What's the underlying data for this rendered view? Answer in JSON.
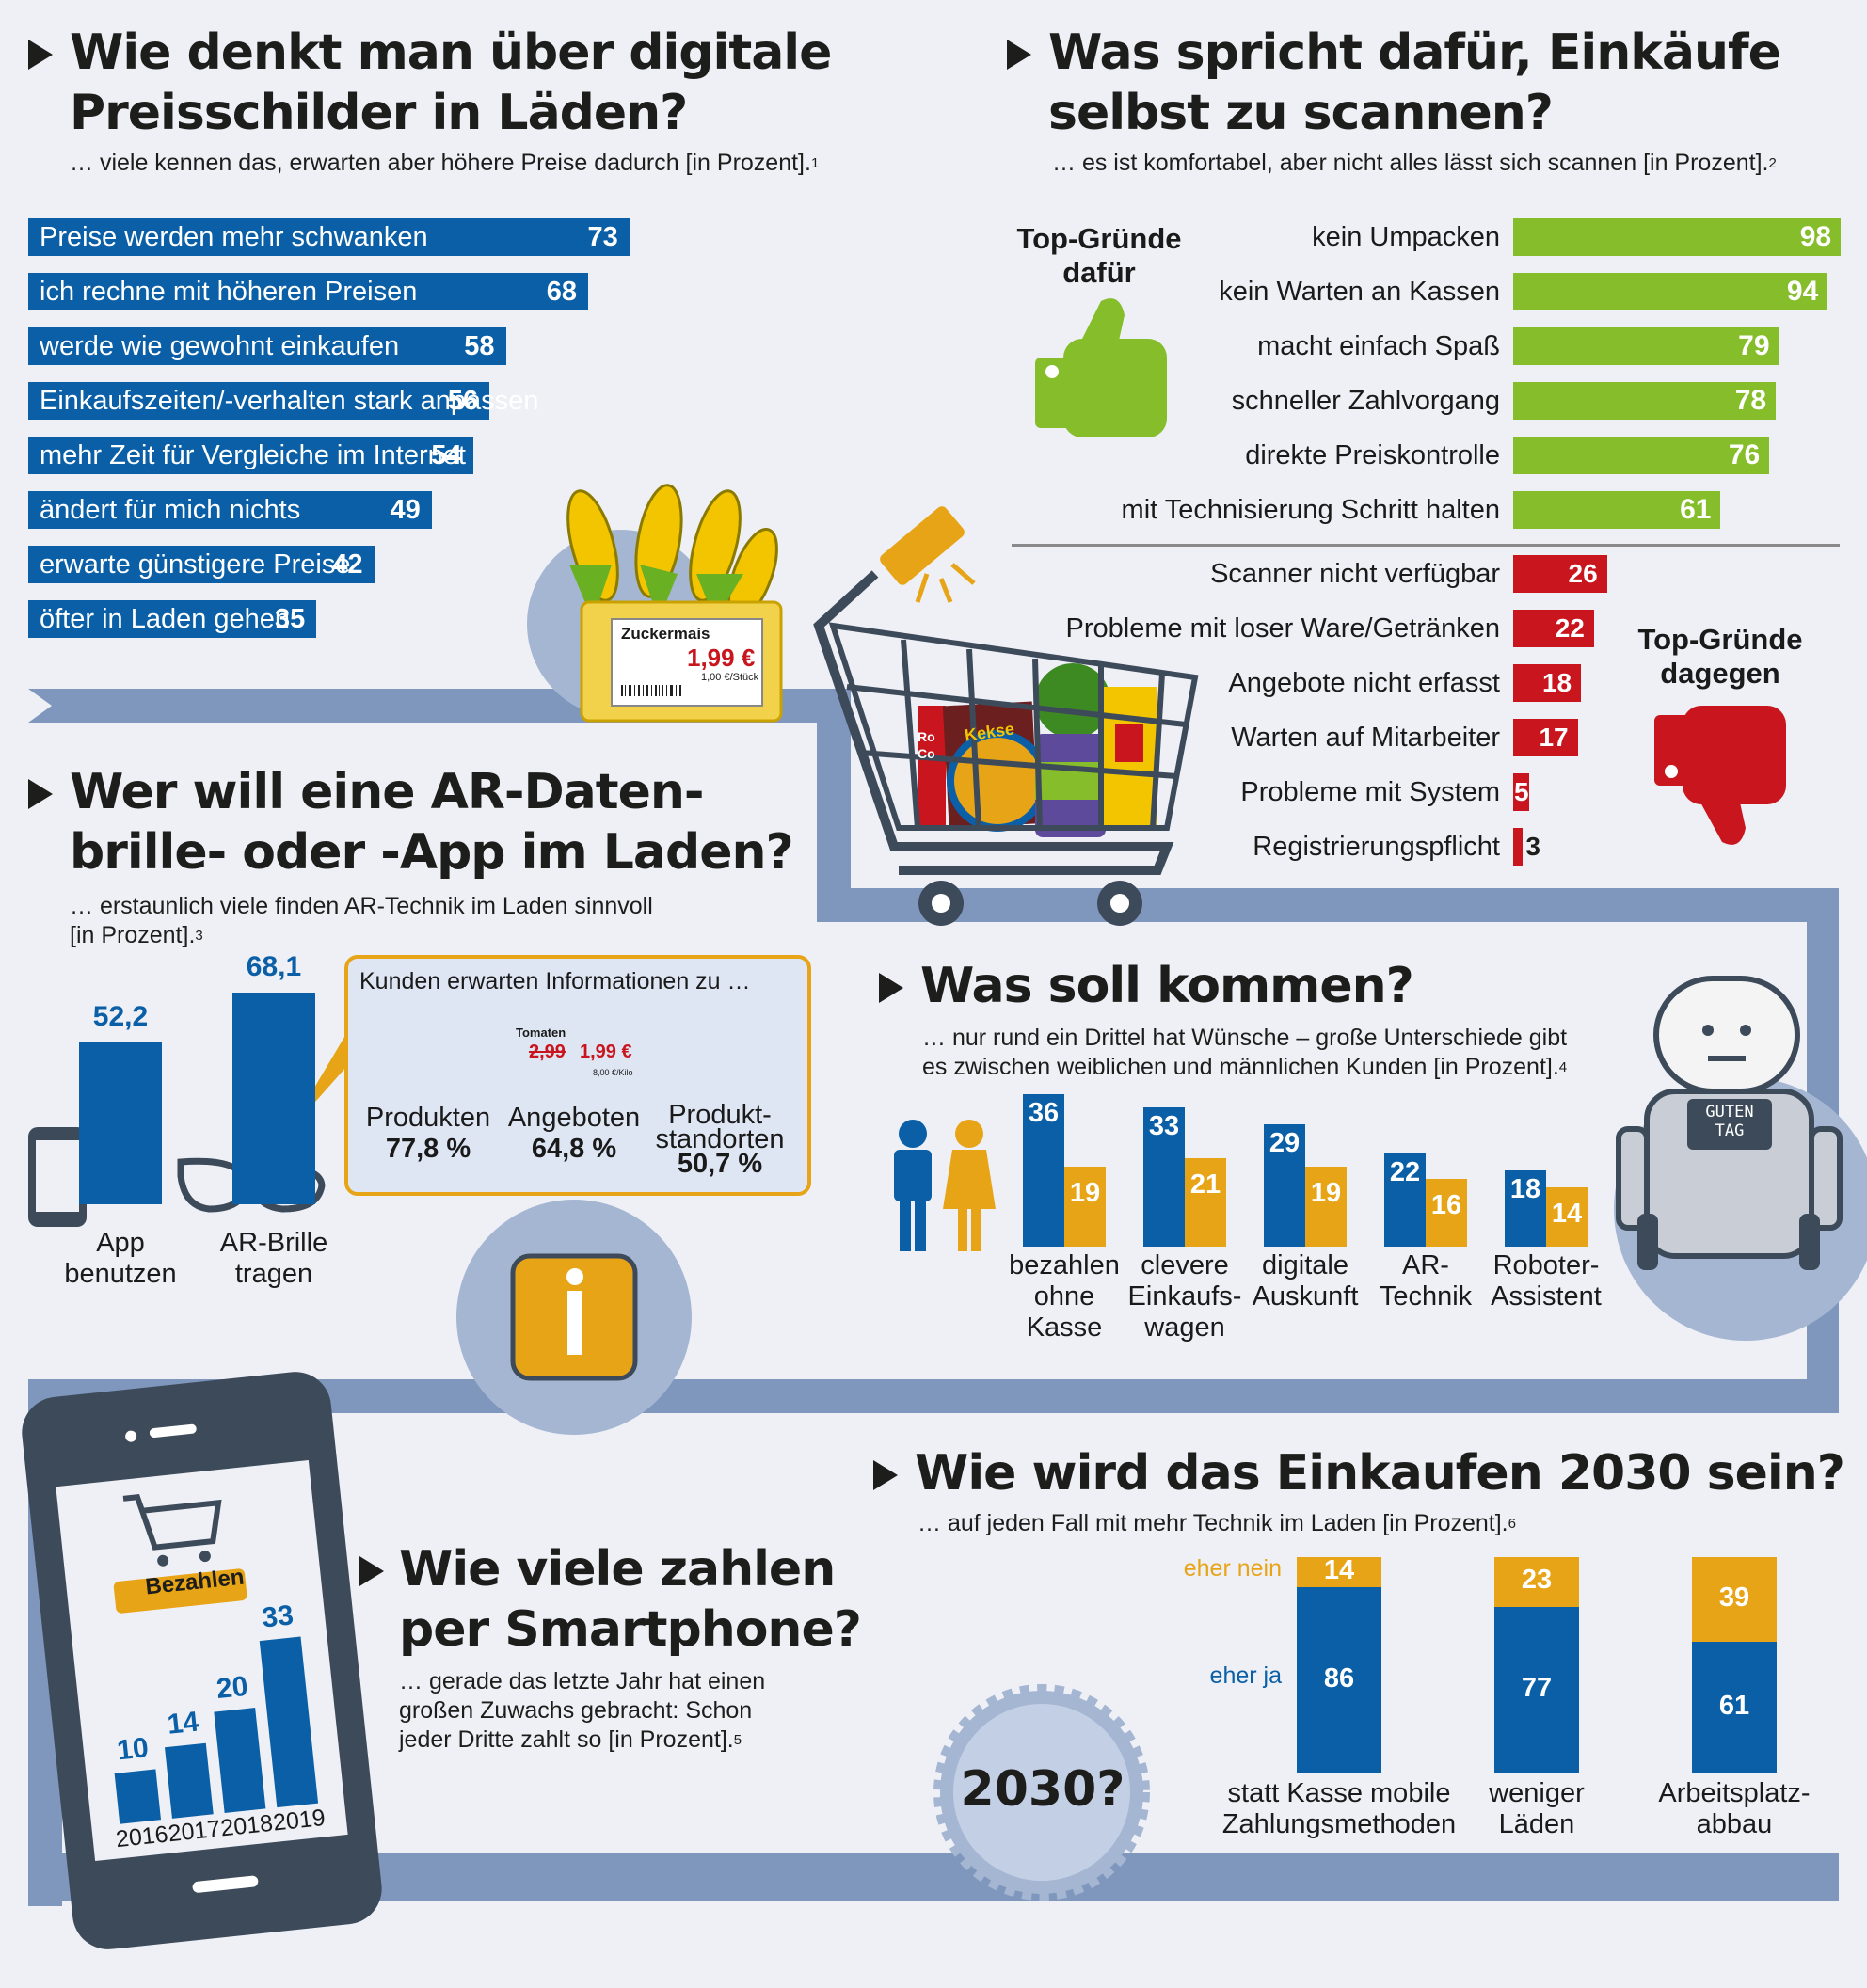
{
  "section1": {
    "title_l1": "Wie denkt man über digitale",
    "title_l2": "Preisschilder in Läden?",
    "subtitle": "… viele kennen das, erwarten aber höhere Preise dadurch [in Prozent].",
    "footnote": "1"
  },
  "section2": {
    "title_l1": "Was spricht dafür, Einkäufe",
    "title_l2": "selbst zu scannen?",
    "subtitle": "… es ist komfortabel, aber nicht alles lässt sich scannen [in Prozent].",
    "footnote": "2",
    "pro_label_l1": "Top-Gründe",
    "pro_label_l2": "dafür",
    "con_label_l1": "Top-Gründe",
    "con_label_l2": "dagegen"
  },
  "section3": {
    "title_l1": "Wer will eine AR-Daten-",
    "title_l2": "brille- oder -App im Laden?",
    "subtitle_l1": "… erstaunlich viele finden AR-Technik im Laden sinnvoll",
    "subtitle_l2": "[in Prozent].",
    "footnote": "3",
    "info_title": "Kunden erwarten Informationen zu …",
    "info_items": [
      {
        "label_l1": "Produkten",
        "label_l2": "",
        "value": "77,8 %"
      },
      {
        "label_l1": "Angeboten",
        "label_l2": "",
        "value": "64,8 %"
      },
      {
        "label_l1": "Produkt-",
        "label_l2": "standorten",
        "value": "50,7 %"
      }
    ]
  },
  "section4": {
    "title": "Was soll kommen?",
    "subtitle_l1": "… nur rund ein Drittel hat Wünsche – große Unterschiede gibt",
    "subtitle_l2": "es zwischen weiblichen und männlichen Kunden [in Prozent].",
    "footnote": "4"
  },
  "section5": {
    "title_l1": "Wie viele zahlen",
    "title_l2": "per Smartphone?",
    "subtitle_l1": "… gerade das letzte Jahr hat einen",
    "subtitle_l2": "großen Zuwachs gebracht: Schon",
    "subtitle_l3": "jeder Dritte zahlt so [in Prozent].",
    "footnote": "5",
    "phone_button": "Bezahlen"
  },
  "section6": {
    "title": "Wie wird das Einkaufen 2030 sein?",
    "subtitle": "… auf jeden Fall mit mehr Technik im Laden [in Prozent].",
    "footnote": "6",
    "badge": "2030?"
  },
  "price_tag": {
    "product": "Zuckermais",
    "price": "1,99 €",
    "unit": "1,00 €/Stück"
  },
  "price_tag2": {
    "product": "Tomaten",
    "old_price": "2,99",
    "price": "1,99 €",
    "unit": "8,00 €/Kilo"
  },
  "robot_sign_l1": "GUTEN",
  "robot_sign_l2": "TAG",
  "cart_labels": {
    "kekse": "Kekse",
    "ro": "Ro",
    "co": "Co"
  },
  "colors": {
    "blue": "#0a5fa6",
    "green": "#86bd2a",
    "red": "#c9161e",
    "orange": "#e8a417",
    "road": "#7f97bd"
  },
  "chart_data": [
    {
      "type": "bar",
      "orientation": "horizontal",
      "categories": [
        "Preise werden mehr schwanken",
        "ich rechne mit höheren Preisen",
        "werde wie gewohnt einkaufen",
        "Einkaufszeiten/-verhalten stark anpassen",
        "mehr Zeit für Vergleiche im Internet",
        "ändert für mich nichts",
        "erwarte günstigere Preise",
        "öfter in Laden gehen"
      ],
      "values": [
        73,
        68,
        58,
        56,
        54,
        49,
        42,
        35
      ]
    },
    {
      "type": "bar",
      "orientation": "horizontal",
      "categories": [
        "kein Umpacken",
        "kein Warten an Kassen",
        "macht einfach Spaß",
        "schneller Zahlvorgang",
        "direkte Preiskontrolle",
        "mit Technisierung Schritt halten"
      ],
      "values": [
        98,
        94,
        79,
        78,
        76,
        61
      ]
    },
    {
      "type": "bar",
      "orientation": "horizontal",
      "categories": [
        "Scanner nicht verfügbar",
        "Probleme mit loser Ware/Getränken",
        "Angebote nicht erfasst",
        "Warten auf Mitarbeiter",
        "Probleme mit System",
        "Registrierungspflicht"
      ],
      "values": [
        26,
        22,
        18,
        17,
        5,
        3
      ]
    },
    {
      "type": "bar",
      "categories": [
        "App benutzen",
        "AR-Brille tragen"
      ],
      "values": [
        "52,2",
        "68,1"
      ],
      "cat_lines": [
        [
          "App",
          "benutzen"
        ],
        [
          "AR-Brille",
          "tragen"
        ]
      ],
      "numeric": [
        52.2,
        68.1
      ]
    },
    {
      "type": "bar",
      "categories": [
        "bezahlen ohne Kasse",
        "clevere Einkaufswagen",
        "digitale Auskunft",
        "AR-Technik",
        "Roboter-Assistent"
      ],
      "cat_lines": [
        [
          "bezahlen",
          "ohne",
          "Kasse"
        ],
        [
          "clevere",
          "Einkaufs-",
          "wagen"
        ],
        [
          "digitale",
          "Auskunft"
        ],
        [
          "AR-",
          "Technik"
        ],
        [
          "Roboter-",
          "Assistent"
        ]
      ],
      "series": [
        {
          "values": [
            36,
            33,
            29,
            22,
            18
          ]
        },
        {
          "values": [
            19,
            21,
            19,
            16,
            14
          ]
        }
      ]
    },
    {
      "type": "bar",
      "categories": [
        "2016",
        "2017",
        "2018",
        "2019"
      ],
      "values": [
        10,
        14,
        20,
        33
      ]
    },
    {
      "type": "bar",
      "stacked": true,
      "categories": [
        "statt Kasse mobile Zahlungsmethoden",
        "weniger Läden",
        "Arbeitsplatzabbau"
      ],
      "cat_lines": [
        [
          "statt Kasse mobile",
          "Zahlungsmethoden"
        ],
        [
          "weniger",
          "Läden"
        ],
        [
          "Arbeitsplatz-",
          "abbau"
        ]
      ],
      "series": [
        {
          "name": "eher ja",
          "values": [
            86,
            77,
            61
          ]
        },
        {
          "name": "eher nein",
          "values": [
            14,
            23,
            39
          ]
        }
      ]
    }
  ]
}
